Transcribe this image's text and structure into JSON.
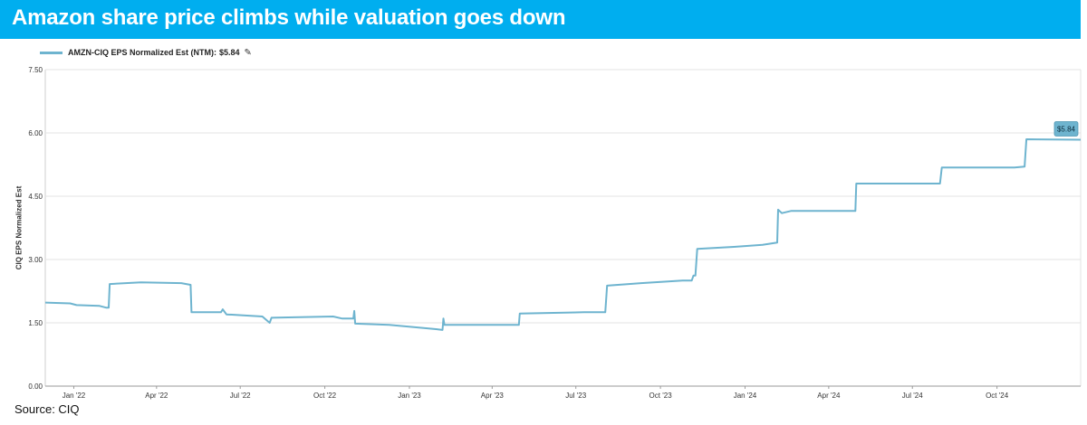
{
  "header": {
    "title": "Amazon share price climbs while valuation goes down"
  },
  "legend": {
    "series_label": "AMZN-CIQ EPS Normalized Est (NTM):",
    "series_value": "$5.84",
    "edit_icon": "pencil-icon"
  },
  "source": {
    "text": "Source:  CIQ"
  },
  "colors": {
    "banner": "#00aeef",
    "series": "#6eb4cf",
    "grid": "#e3e3e3",
    "badge": "#6eb4cf"
  },
  "chart_data": {
    "type": "line",
    "title": "",
    "xlabel": "",
    "ylabel": "CIQ EPS Normalized Est",
    "ylim": [
      0,
      7.5
    ],
    "yticks": [
      "0.00",
      "1.50",
      "3.00",
      "4.50",
      "6.00",
      "7.50"
    ],
    "xlim": [
      "2021-12-01",
      "2024-12-31"
    ],
    "xticks": [
      {
        "label": "Jan '22",
        "date": "2022-01-01"
      },
      {
        "label": "Apr '22",
        "date": "2022-04-01"
      },
      {
        "label": "Jul '22",
        "date": "2022-07-01"
      },
      {
        "label": "Oct '22",
        "date": "2022-10-01"
      },
      {
        "label": "Jan '23",
        "date": "2023-01-01"
      },
      {
        "label": "Apr '23",
        "date": "2023-04-01"
      },
      {
        "label": "Jul '23",
        "date": "2023-07-01"
      },
      {
        "label": "Oct '23",
        "date": "2023-10-01"
      },
      {
        "label": "Jan '24",
        "date": "2024-01-01"
      },
      {
        "label": "Apr '24",
        "date": "2024-04-01"
      },
      {
        "label": "Jul '24",
        "date": "2024-07-01"
      },
      {
        "label": "Oct '24",
        "date": "2024-10-01"
      }
    ],
    "grid": true,
    "legend_position": "top-left",
    "end_label": "$5.84",
    "series": [
      {
        "name": "AMZN-CIQ EPS Normalized Est (NTM)",
        "points": [
          [
            "2021-12-01",
            1.98
          ],
          [
            "2021-12-28",
            1.96
          ],
          [
            "2022-01-04",
            1.92
          ],
          [
            "2022-01-29",
            1.9
          ],
          [
            "2022-02-05",
            1.86
          ],
          [
            "2022-02-08",
            1.86
          ],
          [
            "2022-02-09",
            2.42
          ],
          [
            "2022-03-15",
            2.46
          ],
          [
            "2022-04-28",
            2.44
          ],
          [
            "2022-05-08",
            2.4
          ],
          [
            "2022-05-09",
            1.75
          ],
          [
            "2022-06-10",
            1.75
          ],
          [
            "2022-06-12",
            1.82
          ],
          [
            "2022-06-16",
            1.7
          ],
          [
            "2022-07-25",
            1.65
          ],
          [
            "2022-08-02",
            1.5
          ],
          [
            "2022-08-04",
            1.62
          ],
          [
            "2022-10-10",
            1.65
          ],
          [
            "2022-10-20",
            1.6
          ],
          [
            "2022-11-01",
            1.6
          ],
          [
            "2022-11-02",
            1.78
          ],
          [
            "2022-11-03",
            1.48
          ],
          [
            "2022-12-10",
            1.45
          ],
          [
            "2023-01-30",
            1.35
          ],
          [
            "2023-02-06",
            1.33
          ],
          [
            "2023-02-07",
            1.6
          ],
          [
            "2023-02-08",
            1.45
          ],
          [
            "2023-04-30",
            1.45
          ],
          [
            "2023-05-01",
            1.72
          ],
          [
            "2023-07-10",
            1.75
          ],
          [
            "2023-08-02",
            1.75
          ],
          [
            "2023-08-04",
            2.38
          ],
          [
            "2023-09-10",
            2.44
          ],
          [
            "2023-10-25",
            2.5
          ],
          [
            "2023-11-04",
            2.5
          ],
          [
            "2023-11-06",
            2.62
          ],
          [
            "2023-11-08",
            2.62
          ],
          [
            "2023-11-10",
            3.25
          ],
          [
            "2023-12-20",
            3.3
          ],
          [
            "2024-01-20",
            3.35
          ],
          [
            "2024-02-05",
            3.4
          ],
          [
            "2024-02-06",
            4.18
          ],
          [
            "2024-02-10",
            4.1
          ],
          [
            "2024-02-20",
            4.15
          ],
          [
            "2024-04-30",
            4.15
          ],
          [
            "2024-05-01",
            4.8
          ],
          [
            "2024-06-20",
            4.8
          ],
          [
            "2024-07-31",
            4.8
          ],
          [
            "2024-08-02",
            5.18
          ],
          [
            "2024-09-15",
            5.18
          ],
          [
            "2024-10-20",
            5.18
          ],
          [
            "2024-10-31",
            5.2
          ],
          [
            "2024-11-02",
            5.85
          ],
          [
            "2024-12-31",
            5.84
          ]
        ]
      }
    ]
  }
}
